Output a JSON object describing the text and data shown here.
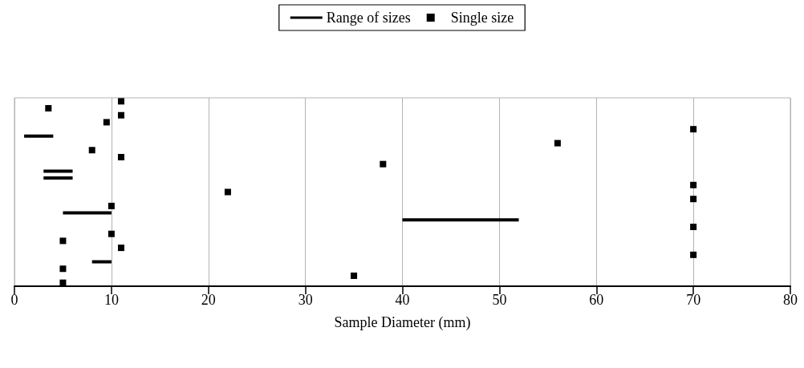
{
  "chart_data": {
    "type": "bar",
    "orientation": "horizontal",
    "xlabel": "Sample Diameter (mm)",
    "categories": [
      null,
      null,
      null,
      null,
      null,
      null,
      null,
      null,
      null,
      null,
      null,
      null,
      null,
      null,
      null,
      null,
      null,
      null,
      null,
      null,
      null,
      null,
      null,
      null,
      null,
      null,
      null
    ],
    "series": [
      {
        "name": "Range of sizes",
        "type": "bar",
        "color": "#000000",
        "base": [
          null,
          null,
          null,
          null,
          null,
          1,
          null,
          null,
          null,
          null,
          3,
          3,
          null,
          null,
          null,
          null,
          5,
          40,
          null,
          null,
          null,
          null,
          null,
          8,
          null,
          null,
          null
        ],
        "values": [
          null,
          null,
          null,
          null,
          null,
          3,
          null,
          null,
          null,
          null,
          3,
          3,
          null,
          null,
          null,
          null,
          5,
          12,
          null,
          null,
          null,
          null,
          null,
          2,
          null,
          null,
          null
        ]
      },
      {
        "name": "Single size",
        "type": "scatter",
        "marker": "square",
        "color": "#000000",
        "values": [
          11,
          3.5,
          11,
          9.5,
          70,
          null,
          56,
          8,
          11,
          38,
          null,
          null,
          70,
          22,
          70,
          10,
          null,
          null,
          70,
          10,
          5,
          11,
          70,
          null,
          5,
          35,
          5
        ]
      }
    ],
    "xlim": [
      0,
      80
    ],
    "xticks": [
      0,
      10,
      20,
      30,
      40,
      50,
      60,
      70,
      80
    ],
    "grid": "x",
    "legend": "top",
    "tick_labels": "x"
  }
}
